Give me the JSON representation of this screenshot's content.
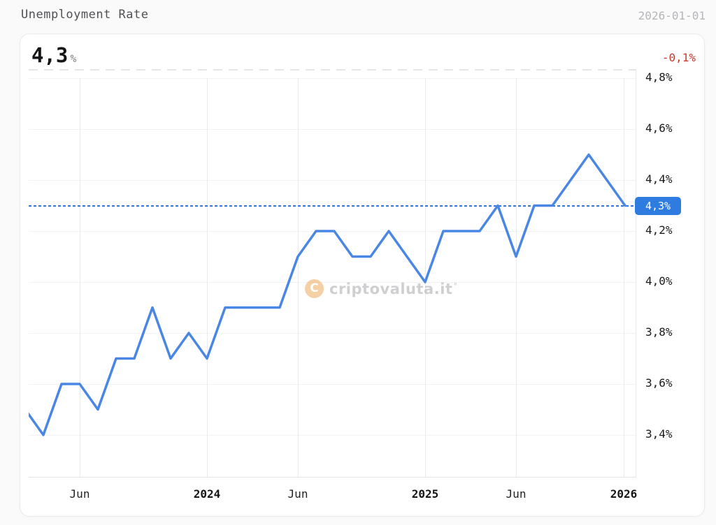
{
  "header": {
    "title": "Unemployment Rate",
    "date": "2026-01-01"
  },
  "card": {
    "current_value": "4,3",
    "current_value_unit": "%",
    "change": "-0,1%",
    "badge_label": "4,3%"
  },
  "watermark": {
    "logo_letter": "C",
    "text": "criptovaluta.it",
    "suffix": "°"
  },
  "chart_data": {
    "type": "line",
    "title": "Unemployment Rate",
    "unit": "%",
    "as_of": "2026-01-01",
    "latest_value": 4.3,
    "change": -0.1,
    "x": [
      "2023-03",
      "2023-04",
      "2023-05",
      "2023-06",
      "2023-07",
      "2023-08",
      "2023-09",
      "2023-10",
      "2023-11",
      "2023-12",
      "2024-01",
      "2024-02",
      "2024-03",
      "2024-04",
      "2024-05",
      "2024-06",
      "2024-07",
      "2024-08",
      "2024-09",
      "2024-10",
      "2024-11",
      "2024-12",
      "2025-01",
      "2025-02",
      "2025-03",
      "2025-04",
      "2025-05",
      "2025-06",
      "2025-07",
      "2025-08",
      "2025-09",
      "2025-10",
      "2025-11",
      "2025-12"
    ],
    "series": [
      {
        "name": "Unemployment Rate",
        "values": [
          3.5,
          3.4,
          3.6,
          3.6,
          3.5,
          3.7,
          3.7,
          3.9,
          3.7,
          3.8,
          3.7,
          3.9,
          3.9,
          3.9,
          3.9,
          4.1,
          4.2,
          4.2,
          4.1,
          4.1,
          4.2,
          4.1,
          4.0,
          4.2,
          4.2,
          4.2,
          4.3,
          4.1,
          4.3,
          4.3,
          4.4,
          4.5,
          4.4,
          4.3
        ]
      }
    ],
    "y_ticks": [
      {
        "value": 4.8,
        "label": "4,8%"
      },
      {
        "value": 4.6,
        "label": "4,6%"
      },
      {
        "value": 4.4,
        "label": "4,4%"
      },
      {
        "value": 4.2,
        "label": "4,2%"
      },
      {
        "value": 4.0,
        "label": "4,0%"
      },
      {
        "value": 3.8,
        "label": "3,8%"
      },
      {
        "value": 3.6,
        "label": "3,6%"
      },
      {
        "value": 3.4,
        "label": "3,4%"
      }
    ],
    "x_ticks": [
      {
        "label": "Jun",
        "month_index": 3,
        "bold": false
      },
      {
        "label": "2024",
        "month_index": 10,
        "bold": true
      },
      {
        "label": "Jun",
        "month_index": 15,
        "bold": false
      },
      {
        "label": "2025",
        "month_index": 22,
        "bold": true
      },
      {
        "label": "Jun",
        "month_index": 27,
        "bold": false
      },
      {
        "label": "2026",
        "month_index": 34,
        "bold": true
      }
    ],
    "reference_line": {
      "value": 4.3,
      "label": "4,3%"
    },
    "ylim": [
      3.23,
      4.85
    ],
    "grid": true,
    "legend": "none",
    "line_color": "#4a86e4",
    "reference_color": "#3274dd",
    "badge_color": "#2e7ce0",
    "change_color": "#c43b2e"
  }
}
